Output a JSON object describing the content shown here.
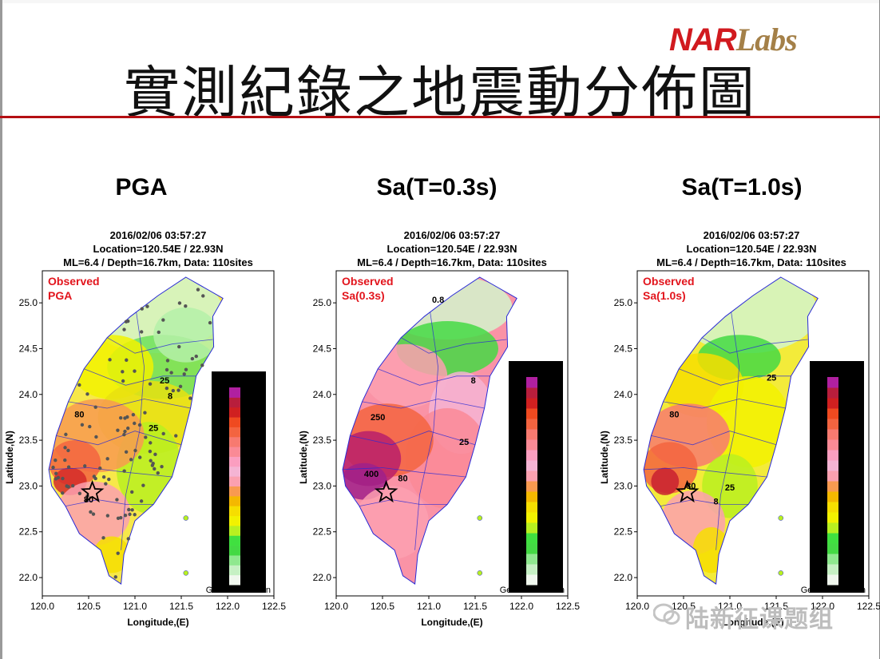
{
  "logo": {
    "nar": "NAR",
    "labs": "Labs"
  },
  "slide_title": "實測紀錄之地震動分佈圖",
  "watermark": "陆新征课题组",
  "chart_data": [
    {
      "type": "heatmap",
      "panel_title": "PGA",
      "info_lines": [
        "2016/02/06 03:57:27",
        "Location=120.54E / 22.93N",
        "ML=6.4 / Depth=16.7km,  Data: 110sites"
      ],
      "annotation": [
        "Observed",
        "PGA"
      ],
      "xlabel": "Longitude,(E)",
      "ylabel": "Latitude,(N)",
      "xticks": [
        "120.0",
        "120.5",
        "121.0",
        "121.5",
        "122.0",
        "122.5"
      ],
      "yticks": [
        "22.0",
        "22.5",
        "23.0",
        "23.5",
        "24.0",
        "24.5",
        "25.0"
      ],
      "xlim": [
        120.0,
        122.5
      ],
      "ylim": [
        21.8,
        25.35
      ],
      "epicenter": {
        "lon": 120.54,
        "lat": 22.93
      },
      "contour_labels": [
        {
          "text": "80",
          "lon": 120.4,
          "lat": 23.75
        },
        {
          "text": "25",
          "lon": 121.2,
          "lat": 23.6
        },
        {
          "text": "25",
          "lon": 121.32,
          "lat": 24.12
        },
        {
          "text": "8",
          "lon": 121.38,
          "lat": 23.95
        },
        {
          "text": "80",
          "lon": 120.5,
          "lat": 22.82
        }
      ],
      "colorbar_label": "Geometric mean",
      "stations_shown": true
    },
    {
      "type": "heatmap",
      "panel_title": "Sa(T=0.3s)",
      "info_lines": [
        "2016/02/06 03:57:27",
        "Location=120.54E / 22.93N",
        "ML=6.4 / Depth=16.7km,  Data: 110sites"
      ],
      "annotation": [
        "Observed",
        "Sa(0.3s)"
      ],
      "xlabel": "Longitude,(E)",
      "ylabel": "Latitude,(N)",
      "xticks": [
        "120.0",
        "120.5",
        "121.0",
        "121.5",
        "122.0",
        "122.5"
      ],
      "yticks": [
        "22.0",
        "22.5",
        "23.0",
        "23.5",
        "24.0",
        "24.5",
        "25.0"
      ],
      "xlim": [
        120.0,
        122.5
      ],
      "ylim": [
        21.8,
        25.35
      ],
      "epicenter": {
        "lon": 120.54,
        "lat": 22.93
      },
      "contour_labels": [
        {
          "text": "0.8",
          "lon": 121.1,
          "lat": 25.0
        },
        {
          "text": "8",
          "lon": 121.48,
          "lat": 24.12
        },
        {
          "text": "250",
          "lon": 120.45,
          "lat": 23.72
        },
        {
          "text": "25",
          "lon": 121.38,
          "lat": 23.45
        },
        {
          "text": "400",
          "lon": 120.38,
          "lat": 23.1
        },
        {
          "text": "80",
          "lon": 120.72,
          "lat": 23.05
        }
      ],
      "colorbar_label": "Geometric mean",
      "stations_shown": false
    },
    {
      "type": "heatmap",
      "panel_title": "Sa(T=1.0s)",
      "info_lines": [
        "2016/02/06 03:57:27",
        "Location=120.54E / 22.93N",
        "ML=6.4 / Depth=16.7km,  Data: 110sites"
      ],
      "annotation": [
        "Observed",
        "Sa(1.0s)"
      ],
      "xlabel": "Longitude,(E)",
      "ylabel": "Latitude,(N)",
      "xticks": [
        "120.0",
        "120.5",
        "121.0",
        "121.5",
        "122.0",
        "122.5"
      ],
      "yticks": [
        "22.0",
        "22.5",
        "23.0",
        "23.5",
        "24.0",
        "24.5",
        "25.0"
      ],
      "xlim": [
        120.0,
        122.5
      ],
      "ylim": [
        21.8,
        25.35
      ],
      "epicenter": {
        "lon": 120.54,
        "lat": 22.93
      },
      "contour_labels": [
        {
          "text": "25",
          "lon": 121.45,
          "lat": 24.15
        },
        {
          "text": "80",
          "lon": 120.4,
          "lat": 23.75
        },
        {
          "text": "25",
          "lon": 121.0,
          "lat": 22.95
        },
        {
          "text": "8",
          "lon": 120.85,
          "lat": 22.8
        },
        {
          "text": "80",
          "lon": 120.58,
          "lat": 22.97
        }
      ],
      "colorbar_label": "Geometric mean",
      "stations_shown": false
    }
  ],
  "colors": {
    "accent_red": "#d11a1f",
    "rule": "#b40e12",
    "annotation": "#e2141c",
    "contour": "#2a2ad6"
  }
}
